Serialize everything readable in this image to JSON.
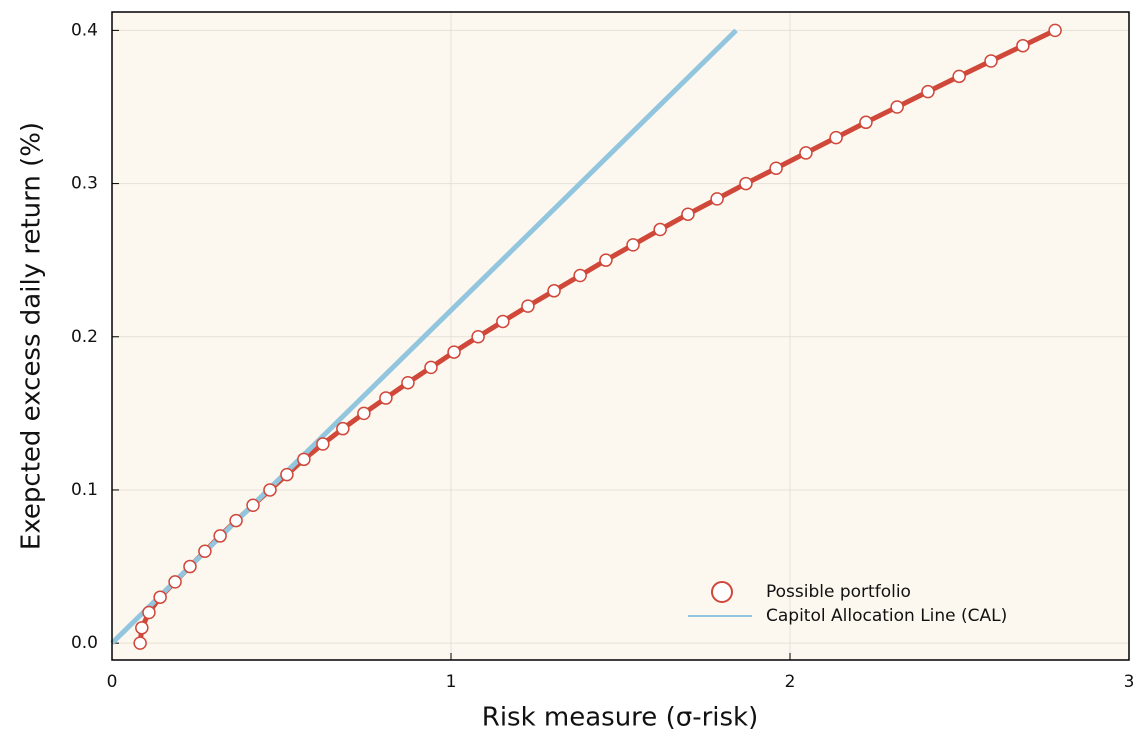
{
  "chart_data": {
    "type": "line",
    "xlabel": "Risk measure (σ-risk)",
    "ylabel": "Exepcted excess daily return (%)",
    "xlim": [
      0,
      3
    ],
    "ylim": [
      -0.011,
      0.412
    ],
    "xticks": [
      0,
      1,
      2,
      3
    ],
    "yticks": [
      {
        "value": 0,
        "label": "0.0"
      },
      0.1,
      0.2,
      0.3,
      0.4
    ],
    "grid": true,
    "legend": "bottom right",
    "series": [
      {
        "name": "Possible portfolio",
        "color": "#d0483a",
        "marker": "circle",
        "x": [
          0.083,
          0.088,
          0.109,
          0.142,
          0.186,
          0.23,
          0.274,
          0.319,
          0.366,
          0.416,
          0.466,
          0.516,
          0.566,
          0.622,
          0.681,
          0.743,
          0.808,
          0.873,
          0.941,
          1.009,
          1.08,
          1.153,
          1.227,
          1.304,
          1.381,
          1.457,
          1.537,
          1.617,
          1.699,
          1.785,
          1.87,
          1.959,
          2.047,
          2.136,
          2.224,
          2.316,
          2.407,
          2.499,
          2.593,
          2.687,
          2.782
        ],
        "values": [
          0.0,
          0.01,
          0.02,
          0.03,
          0.04,
          0.05,
          0.06,
          0.07,
          0.08,
          0.09,
          0.1,
          0.11,
          0.12,
          0.13,
          0.14,
          0.15,
          0.16,
          0.17,
          0.18,
          0.19,
          0.2,
          0.21,
          0.22,
          0.23,
          0.24,
          0.25,
          0.26,
          0.27,
          0.28,
          0.29,
          0.3,
          0.31,
          0.32,
          0.33,
          0.34,
          0.35,
          0.36,
          0.37,
          0.38,
          0.39,
          0.4
        ]
      },
      {
        "name": "Capitol Allocation Line (CAL)",
        "color": "#92c5de",
        "x": [
          0,
          1.841
        ],
        "values": [
          0,
          0.4
        ]
      }
    ]
  }
}
